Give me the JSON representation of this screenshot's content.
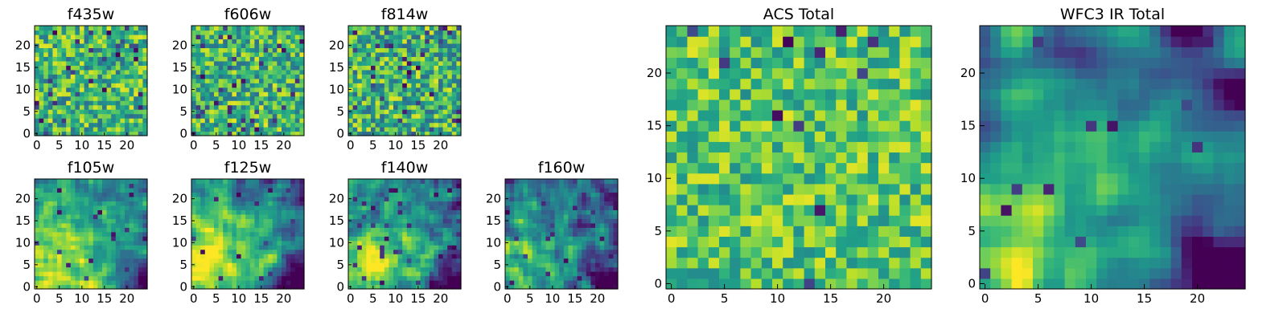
{
  "chart_data": [
    {
      "type": "heatmap",
      "title": "f435w",
      "colormap": "viridis",
      "grid": "25x25",
      "xlim": [
        0,
        25
      ],
      "ylim": [
        0,
        25
      ],
      "xticks": [
        "0",
        "5",
        "10",
        "15",
        "20"
      ],
      "yticks": [
        "0",
        "5",
        "10",
        "15",
        "20"
      ],
      "pattern": "noise",
      "smooth": 0,
      "mean": 0.66,
      "amp": 0.3,
      "dark_fraction": 0.05,
      "seed": 11
    },
    {
      "type": "heatmap",
      "title": "f606w",
      "colormap": "viridis",
      "grid": "25x25",
      "xlim": [
        0,
        25
      ],
      "ylim": [
        0,
        25
      ],
      "xticks": [
        "0",
        "5",
        "10",
        "15",
        "20"
      ],
      "yticks": [
        "0",
        "5",
        "10",
        "15",
        "20"
      ],
      "pattern": "noise",
      "smooth": 0,
      "mean": 0.66,
      "amp": 0.3,
      "dark_fraction": 0.05,
      "seed": 23
    },
    {
      "type": "heatmap",
      "title": "f814w",
      "colormap": "viridis",
      "grid": "25x25",
      "xlim": [
        0,
        25
      ],
      "ylim": [
        0,
        25
      ],
      "xticks": [
        "0",
        "5",
        "10",
        "15",
        "20"
      ],
      "yticks": [
        "0",
        "5",
        "10",
        "15",
        "20"
      ],
      "pattern": "noise",
      "smooth": 0,
      "mean": 0.64,
      "amp": 0.32,
      "dark_fraction": 0.06,
      "seed": 37
    },
    {
      "type": "heatmap",
      "title": "f105w",
      "colormap": "viridis",
      "grid": "25x25",
      "xlim": [
        0,
        25
      ],
      "ylim": [
        0,
        25
      ],
      "xticks": [
        "0",
        "5",
        "10",
        "15",
        "20"
      ],
      "yticks": [
        "0",
        "5",
        "10",
        "15",
        "20"
      ],
      "pattern": "bright-lower-left",
      "smooth": 1,
      "mean": 0.7,
      "amp": 0.3,
      "dark_fraction": 0.02,
      "seed": 41
    },
    {
      "type": "heatmap",
      "title": "f125w",
      "colormap": "viridis",
      "grid": "25x25",
      "xlim": [
        0,
        25
      ],
      "ylim": [
        0,
        25
      ],
      "xticks": [
        "0",
        "5",
        "10",
        "15",
        "20"
      ],
      "yticks": [
        "0",
        "5",
        "10",
        "15",
        "20"
      ],
      "pattern": "bright-lower-left",
      "smooth": 1,
      "mean": 0.62,
      "amp": 0.34,
      "dark_fraction": 0.03,
      "seed": 53
    },
    {
      "type": "heatmap",
      "title": "f140w",
      "colormap": "viridis",
      "grid": "25x25",
      "xlim": [
        0,
        25
      ],
      "ylim": [
        0,
        25
      ],
      "xticks": [
        "0",
        "5",
        "10",
        "15",
        "20"
      ],
      "yticks": [
        "0",
        "5",
        "10",
        "15",
        "20"
      ],
      "pattern": "bright-lower-left",
      "smooth": 1,
      "mean": 0.58,
      "amp": 0.36,
      "dark_fraction": 0.04,
      "seed": 67
    },
    {
      "type": "heatmap",
      "title": "f160w",
      "colormap": "viridis",
      "grid": "25x25",
      "xlim": [
        0,
        25
      ],
      "ylim": [
        0,
        25
      ],
      "xticks": [
        "0",
        "5",
        "10",
        "15",
        "20"
      ],
      "yticks": [
        "0",
        "5",
        "10",
        "15",
        "20"
      ],
      "pattern": "bright-lower-left",
      "smooth": 1,
      "mean": 0.46,
      "amp": 0.4,
      "dark_fraction": 0.05,
      "seed": 79
    },
    {
      "type": "heatmap",
      "title": "ACS Total",
      "colormap": "viridis",
      "grid": "25x25",
      "xlim": [
        0,
        25
      ],
      "ylim": [
        0,
        25
      ],
      "xticks": [
        "0",
        "5",
        "10",
        "15",
        "20"
      ],
      "yticks": [
        "0",
        "5",
        "10",
        "15",
        "20"
      ],
      "pattern": "noise",
      "smooth": 0,
      "mean": 0.72,
      "amp": 0.24,
      "dark_fraction": 0.02,
      "seed": 97
    },
    {
      "type": "heatmap",
      "title": "WFC3 IR Total",
      "colormap": "viridis",
      "grid": "25x25",
      "xlim": [
        0,
        25
      ],
      "ylim": [
        0,
        25
      ],
      "xticks": [
        "0",
        "5",
        "10",
        "15",
        "20"
      ],
      "yticks": [
        "0",
        "5",
        "10",
        "15",
        "20"
      ],
      "pattern": "bright-lower-left",
      "smooth": 2,
      "mean": 0.55,
      "amp": 0.4,
      "dark_fraction": 0.02,
      "seed": 113
    }
  ]
}
